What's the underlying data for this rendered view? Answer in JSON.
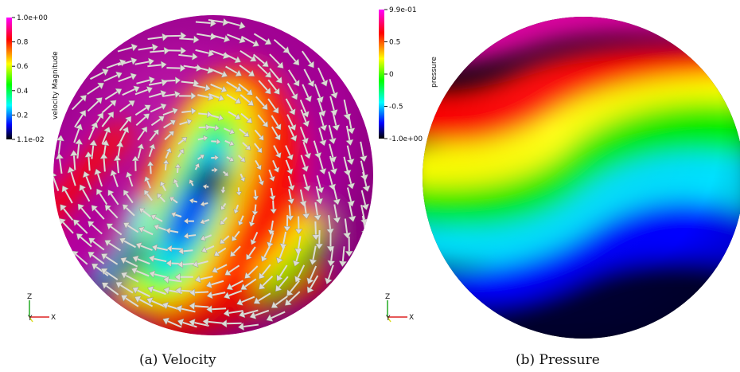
{
  "panels": [
    {
      "caption": "(a) Velocity",
      "colorbar": {
        "title": "velocity Magnitude",
        "tick_labels": [
          "1.0e+00",
          "0.8",
          "0.6",
          "0.4",
          "0.2",
          "1.1e-02"
        ],
        "colormap": [
          "#ff00ff",
          "#ff0000",
          "#ffff00",
          "#00ff00",
          "#00ffff",
          "#0000ff",
          "#000000"
        ]
      },
      "axes": {
        "z": "Z",
        "y": "Y",
        "x": "X"
      },
      "field": {
        "type": "vector-arrows",
        "arrow_color": "#dcdcd6"
      }
    },
    {
      "caption": "(b) Pressure",
      "colorbar": {
        "title": "pressure",
        "tick_labels": [
          "9.9e-01",
          "0.5",
          "0",
          "-0.5",
          "-1.0e+00"
        ],
        "colormap": [
          "#ff00ff",
          "#ff0000",
          "#ffff00",
          "#00ff00",
          "#00ffff",
          "#0000ff",
          "#000000"
        ]
      },
      "axes": {
        "z": "Z",
        "y": "Y",
        "x": "X"
      },
      "field": {
        "type": "scalar"
      }
    }
  ]
}
